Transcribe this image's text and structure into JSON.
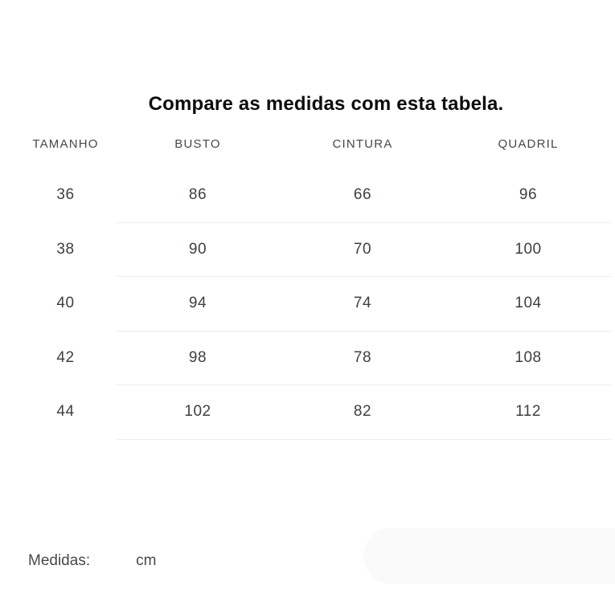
{
  "title": "Compare as medidas com esta tabela.",
  "table": {
    "headers": [
      "TAMANHO",
      "BUSTO",
      "CINTURA",
      "QUADRIL"
    ],
    "rows": [
      [
        "36",
        "86",
        "66",
        "96"
      ],
      [
        "38",
        "90",
        "70",
        "100"
      ],
      [
        "40",
        "94",
        "74",
        "104"
      ],
      [
        "42",
        "98",
        "78",
        "108"
      ],
      [
        "44",
        "102",
        "82",
        "112"
      ]
    ]
  },
  "footer": {
    "label": "Medidas:",
    "value": "cm"
  },
  "colors": {
    "background": "#ffffff",
    "title_text": "#0c0c0c",
    "header_text": "#43484d",
    "cell_text": "#3c4045",
    "divider": "#ececec",
    "pill": "#fafafa"
  }
}
